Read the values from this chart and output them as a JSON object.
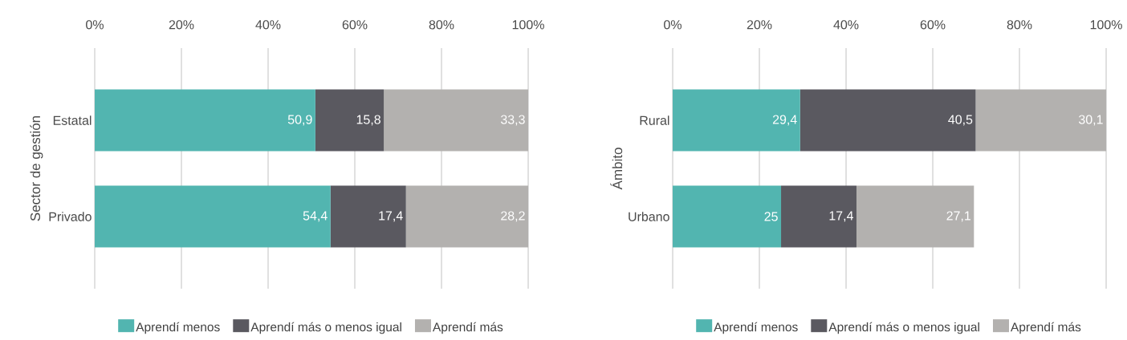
{
  "chart_data": [
    {
      "type": "bar",
      "orientation": "horizontal",
      "stacked": true,
      "ylabel": "Sector de gestión",
      "categories": [
        "Estatal",
        "Privado"
      ],
      "series": [
        {
          "name": "Aprendí menos",
          "color": "#52b5b0",
          "values": [
            50.9,
            54.4
          ],
          "value_labels": [
            "50,9",
            "54,4"
          ]
        },
        {
          "name": "Aprendí más o menos igual",
          "color": "#5a5960",
          "values": [
            15.8,
            17.4
          ],
          "value_labels": [
            "15,8",
            "17,4"
          ]
        },
        {
          "name": "Aprendí más",
          "color": "#b3b1af",
          "values": [
            33.3,
            28.2
          ],
          "value_labels": [
            "33,3",
            "28,2"
          ]
        }
      ],
      "xlim": [
        0,
        100
      ],
      "xticks": [
        {
          "value": 0,
          "label": "0%"
        },
        {
          "value": 20,
          "label": "20%"
        },
        {
          "value": 40,
          "label": "40%"
        },
        {
          "value": 60,
          "label": "60%"
        },
        {
          "value": 80,
          "label": "80%"
        },
        {
          "value": 100,
          "label": "100%"
        }
      ],
      "grid": "x",
      "legend": "bottom"
    },
    {
      "type": "bar",
      "orientation": "horizontal",
      "stacked": true,
      "ylabel": "Ámbito",
      "categories": [
        "Rural",
        "Urbano"
      ],
      "series": [
        {
          "name": "Aprendí menos",
          "color": "#52b5b0",
          "values": [
            29.4,
            25
          ],
          "value_labels": [
            "29,4",
            "25"
          ]
        },
        {
          "name": "Aprendí más o menos igual",
          "color": "#5a5960",
          "values": [
            40.5,
            17.4
          ],
          "value_labels": [
            "40,5",
            "17,4"
          ]
        },
        {
          "name": "Aprendí más",
          "color": "#b3b1af",
          "values": [
            30.1,
            27.1
          ],
          "value_labels": [
            "30,1",
            "27,1"
          ]
        }
      ],
      "xlim": [
        0,
        100
      ],
      "xticks": [
        {
          "value": 0,
          "label": "0%"
        },
        {
          "value": 20,
          "label": "20%"
        },
        {
          "value": 40,
          "label": "40%"
        },
        {
          "value": 60,
          "label": "60%"
        },
        {
          "value": 80,
          "label": "80%"
        },
        {
          "value": 100,
          "label": "100%"
        }
      ],
      "grid": "x",
      "legend": "bottom"
    }
  ]
}
